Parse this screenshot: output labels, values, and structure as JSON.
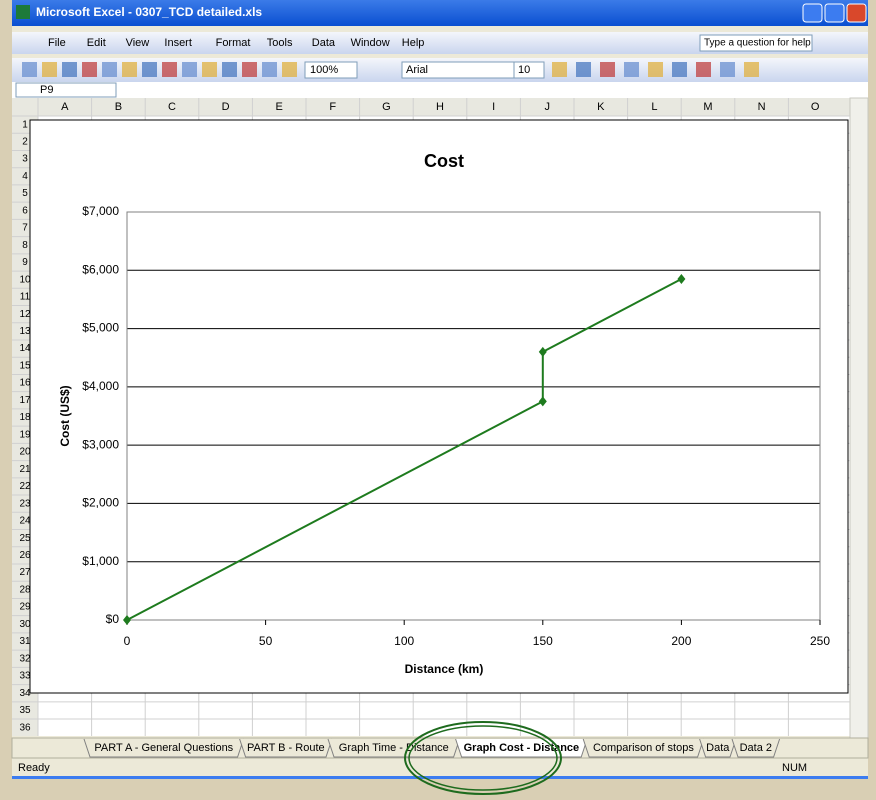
{
  "window": {
    "title": "Microsoft Excel - 0307_TCD detailed.xls",
    "menu": [
      "File",
      "Edit",
      "View",
      "Insert",
      "Format",
      "Tools",
      "Data",
      "Window",
      "Help"
    ],
    "help_box": "Type a question for help",
    "zoom": "100%",
    "font": "Arial",
    "font_size": "10",
    "name_box": "P9",
    "columns": [
      "A",
      "B",
      "C",
      "D",
      "E",
      "F",
      "G",
      "H",
      "I",
      "J",
      "K",
      "L",
      "M",
      "N",
      "O"
    ],
    "rows": [
      1,
      2,
      3,
      4,
      5,
      6,
      7,
      8,
      9,
      10,
      11,
      12,
      13,
      14,
      15,
      16,
      17,
      18,
      19,
      20,
      21,
      22,
      23,
      24,
      25,
      26,
      27,
      28,
      29,
      30,
      31,
      32,
      33,
      34,
      35,
      36
    ],
    "sheet_tabs": [
      "PART A - General Questions",
      "PART B - Route",
      "Graph Time - Distance",
      "Graph Cost - Distance",
      "Comparison of stops",
      "Data",
      "Data 2"
    ],
    "status": "Ready",
    "status_num": "NUM"
  },
  "chart_data": {
    "type": "line",
    "title": "Cost",
    "x_label": "Distance (km)",
    "y_label": "Cost (US$)",
    "x": [
      0,
      150,
      150,
      200
    ],
    "values": [
      0,
      3750,
      4600,
      5850
    ],
    "color": "#1e7b1e",
    "xlim": [
      0,
      250
    ],
    "xticks": [
      0,
      50,
      100,
      150,
      200,
      250
    ],
    "ylim": [
      0,
      7000
    ],
    "yticks": [
      {
        "value": 0,
        "label": "$0"
      },
      {
        "value": 1000,
        "label": "$1,000"
      },
      {
        "value": 2000,
        "label": "$2,000"
      },
      {
        "value": 3000,
        "label": "$3,000"
      },
      {
        "value": 4000,
        "label": "$4,000"
      },
      {
        "value": 5000,
        "label": "$5,000"
      },
      {
        "value": 6000,
        "label": "$6,000"
      },
      {
        "value": 7000,
        "label": "$7,000"
      }
    ],
    "grid": true
  }
}
